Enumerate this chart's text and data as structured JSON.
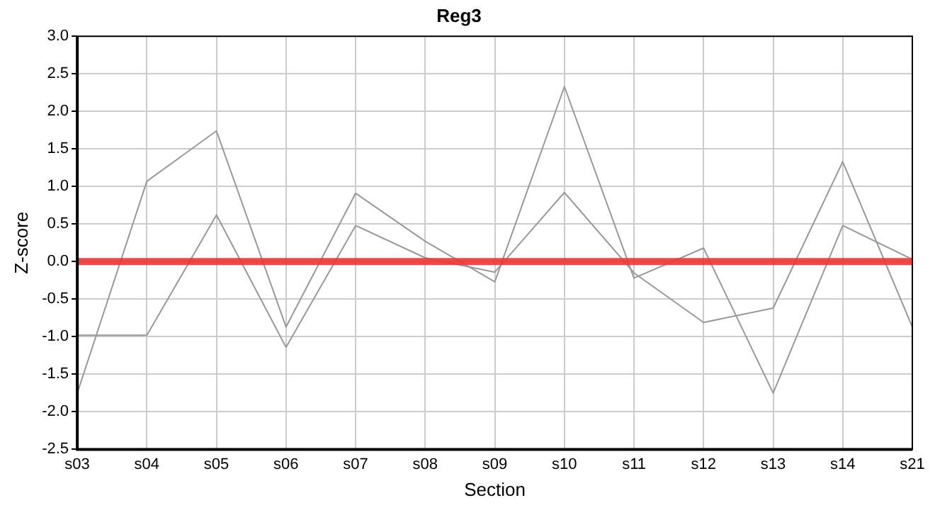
{
  "chart_data": {
    "type": "line",
    "title": "Reg3",
    "xlabel": "Section",
    "ylabel": "Z-score",
    "categories": [
      "s03",
      "s04",
      "s05",
      "s06",
      "s07",
      "s08",
      "s09",
      "s10",
      "s11",
      "s12",
      "s13",
      "s14",
      "s21"
    ],
    "series": [
      {
        "color": "#999999",
        "values": [
          -1.75,
          1.07,
          1.74,
          -0.87,
          0.91,
          0.27,
          -0.27,
          2.33,
          -0.22,
          0.18,
          -1.75,
          0.48,
          0.03
        ]
      },
      {
        "color": "#999999",
        "values": [
          -0.98,
          -0.98,
          0.62,
          -1.14,
          0.48,
          0.05,
          -0.14,
          0.92,
          -0.15,
          -0.81,
          -0.62,
          1.33,
          -0.87
        ]
      }
    ],
    "ylim": [
      -2.5,
      3.0
    ],
    "yticks": [
      {
        "value": -2.5,
        "label": "-2.5"
      },
      {
        "value": -2,
        "label": "-2.0"
      },
      {
        "value": -1.5,
        "label": "-1.5"
      },
      {
        "value": -1,
        "label": "-1.0"
      },
      {
        "value": -0.5,
        "label": "-0.5"
      },
      {
        "value": 0,
        "label": "0.0"
      },
      {
        "value": 0.5,
        "label": "0.5"
      },
      {
        "value": 1,
        "label": "1.0"
      },
      {
        "value": 1.5,
        "label": "1.5"
      },
      {
        "value": 2,
        "label": "2.0"
      },
      {
        "value": 2.5,
        "label": "2.5"
      },
      {
        "value": 3,
        "label": "3.0"
      }
    ],
    "ref_lines": [
      {
        "axis": "y",
        "value": 0,
        "color": "#ee3333"
      }
    ],
    "grid": true,
    "legend": false,
    "marker": "none",
    "line_style": "solid"
  }
}
